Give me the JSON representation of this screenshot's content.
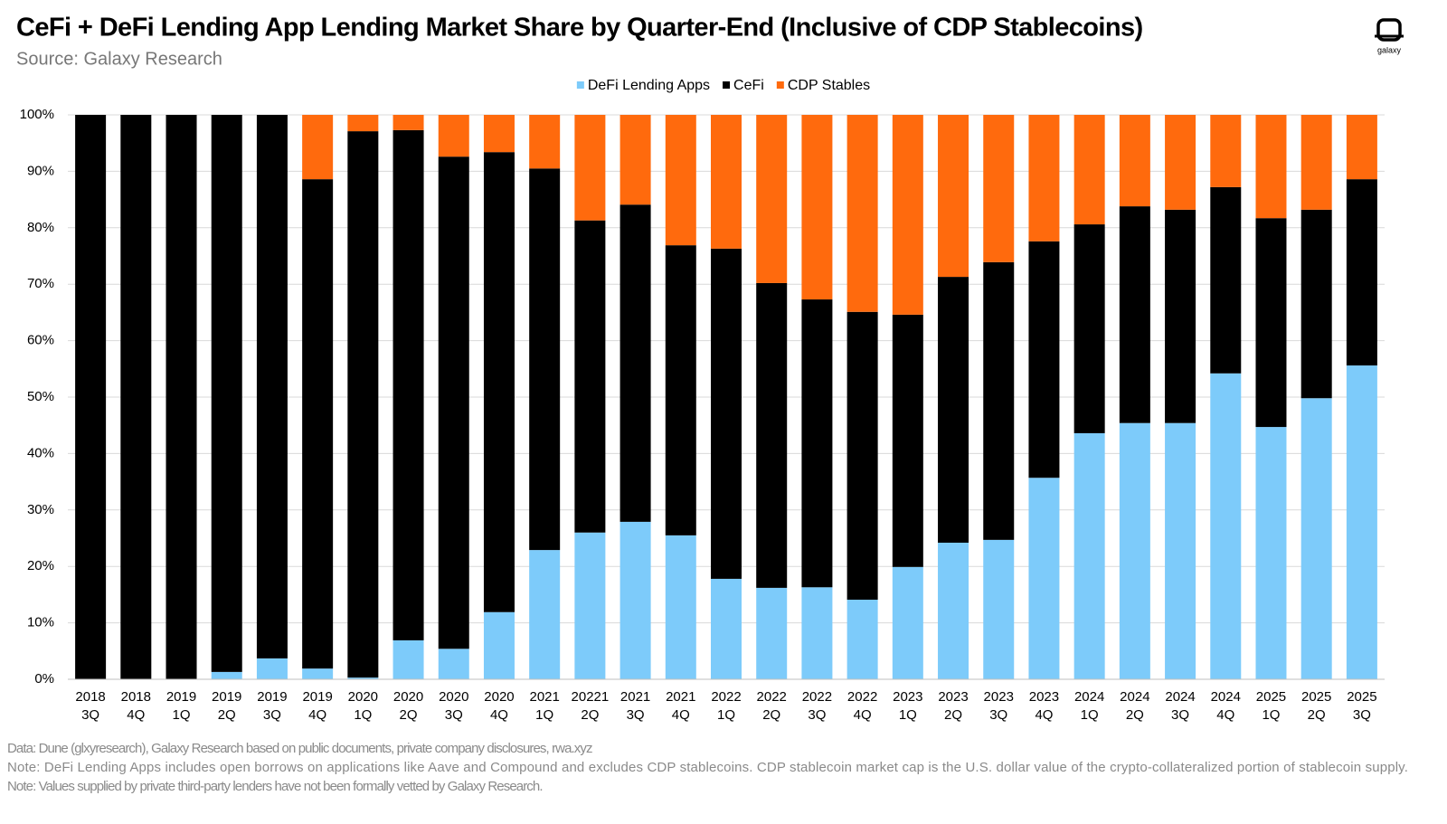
{
  "chart_data": {
    "type": "stacked_bar",
    "title": "CeFi + DeFi Lending App Lending Market Share by Quarter-End (Inclusive of CDP Stablecoins)",
    "subtitle": "Source: Galaxy Research",
    "logo_text": "galaxy",
    "categories": [
      [
        "2018",
        "3Q"
      ],
      [
        "2018",
        "4Q"
      ],
      [
        "2019",
        "1Q"
      ],
      [
        "2019",
        "2Q"
      ],
      [
        "2019",
        "3Q"
      ],
      [
        "2019",
        "4Q"
      ],
      [
        "2020",
        "1Q"
      ],
      [
        "2020",
        "2Q"
      ],
      [
        "2020",
        "3Q"
      ],
      [
        "2020",
        "4Q"
      ],
      [
        "2021",
        "1Q"
      ],
      [
        "20221",
        "2Q"
      ],
      [
        "2021",
        "3Q"
      ],
      [
        "2021",
        "4Q"
      ],
      [
        "2022",
        "1Q"
      ],
      [
        "2022",
        "2Q"
      ],
      [
        "2022",
        "3Q"
      ],
      [
        "2022",
        "4Q"
      ],
      [
        "2023",
        "1Q"
      ],
      [
        "2023",
        "2Q"
      ],
      [
        "2023",
        "3Q"
      ],
      [
        "2023",
        "4Q"
      ],
      [
        "2024",
        "1Q"
      ],
      [
        "2024",
        "2Q"
      ],
      [
        "2024",
        "3Q"
      ],
      [
        "2024",
        "4Q"
      ],
      [
        "2025",
        "1Q"
      ],
      [
        "2025",
        "2Q"
      ],
      [
        "2025",
        "3Q"
      ]
    ],
    "series": [
      {
        "name": "DeFi Lending Apps",
        "color": "#7dcbfa",
        "values": [
          0,
          0,
          0,
          1.3,
          3.7,
          1.9,
          0.3,
          6.9,
          5.4,
          11.9,
          22.9,
          26.0,
          27.9,
          25.5,
          17.8,
          16.2,
          16.3,
          14.1,
          19.9,
          24.2,
          24.7,
          35.7,
          43.6,
          45.4,
          45.4,
          54.2,
          44.7,
          49.8,
          55.6
        ]
      },
      {
        "name": "CeFi",
        "color": "#000000",
        "values": [
          100,
          100,
          100,
          98.7,
          96.3,
          86.7,
          96.8,
          90.4,
          87.2,
          81.5,
          67.6,
          55.3,
          56.2,
          51.4,
          58.5,
          54.0,
          51.0,
          51.0,
          44.7,
          47.1,
          49.2,
          41.9,
          37.0,
          38.4,
          37.8,
          33.0,
          37.0,
          33.4,
          33.0
        ]
      },
      {
        "name": "CDP Stables",
        "color": "#ff6a0d",
        "values": [
          0,
          0,
          0,
          0,
          0,
          11.4,
          2.9,
          2.7,
          7.4,
          6.6,
          9.5,
          18.7,
          15.9,
          23.1,
          23.7,
          29.8,
          32.7,
          34.9,
          35.4,
          28.7,
          26.1,
          22.4,
          19.4,
          16.2,
          16.8,
          12.8,
          18.3,
          16.8,
          11.4
        ]
      }
    ],
    "ylim": [
      0,
      100
    ],
    "yticks": [
      {
        "value": 0,
        "label": "0%"
      },
      {
        "value": 10,
        "label": "10%"
      },
      {
        "value": 20,
        "label": "20%"
      },
      {
        "value": 30,
        "label": "30%"
      },
      {
        "value": 40,
        "label": "40%"
      },
      {
        "value": 50,
        "label": "50%"
      },
      {
        "value": 60,
        "label": "60%"
      },
      {
        "value": 70,
        "label": "70%"
      },
      {
        "value": 80,
        "label": "80%"
      },
      {
        "value": 90,
        "label": "90%"
      },
      {
        "value": 100,
        "label": "100%"
      }
    ],
    "grid": true,
    "legend": "top",
    "notes": [
      "Data: Dune (glxyresearch), Galaxy Research based on public documents, private company disclosures, rwa.xyz",
      "Note: DeFi Lending Apps includes open borrows on applications like Aave and Compound and excludes CDP stablecoins. CDP stablecoin market cap is the U.S. dollar value of the crypto-collateralized portion of stablecoin supply.",
      "Note: Values supplied by private third-party lenders have not been formally vetted  by Galaxy Research."
    ]
  }
}
